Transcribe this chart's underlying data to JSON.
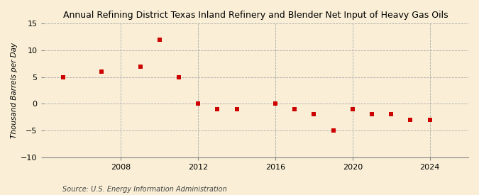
{
  "years": [
    2005,
    2007,
    2009,
    2010,
    2011,
    2012,
    2013,
    2014,
    2016,
    2017,
    2018,
    2019,
    2020,
    2021,
    2022,
    2023,
    2024
  ],
  "values": [
    5.0,
    6.0,
    7.0,
    12.0,
    5.0,
    0.0,
    -1.0,
    -1.0,
    0.0,
    -1.0,
    -2.0,
    -5.0,
    -1.0,
    -2.0,
    -2.0,
    -3.0,
    -3.0
  ],
  "title": "Annual Refining District Texas Inland Refinery and Blender Net Input of Heavy Gas Oils",
  "ylabel": "Thousand Barrels per Day",
  "source": "Source: U.S. Energy Information Administration",
  "xlim": [
    2004,
    2026
  ],
  "ylim": [
    -10,
    15
  ],
  "yticks": [
    -10,
    -5,
    0,
    5,
    10,
    15
  ],
  "xticks": [
    2008,
    2012,
    2016,
    2020,
    2024
  ],
  "marker_color": "#cc0000",
  "bg_color": "#faefd6",
  "grid_color": "#aaaaaa",
  "vline_color": "#aaaaaa",
  "marker_size": 4.5
}
